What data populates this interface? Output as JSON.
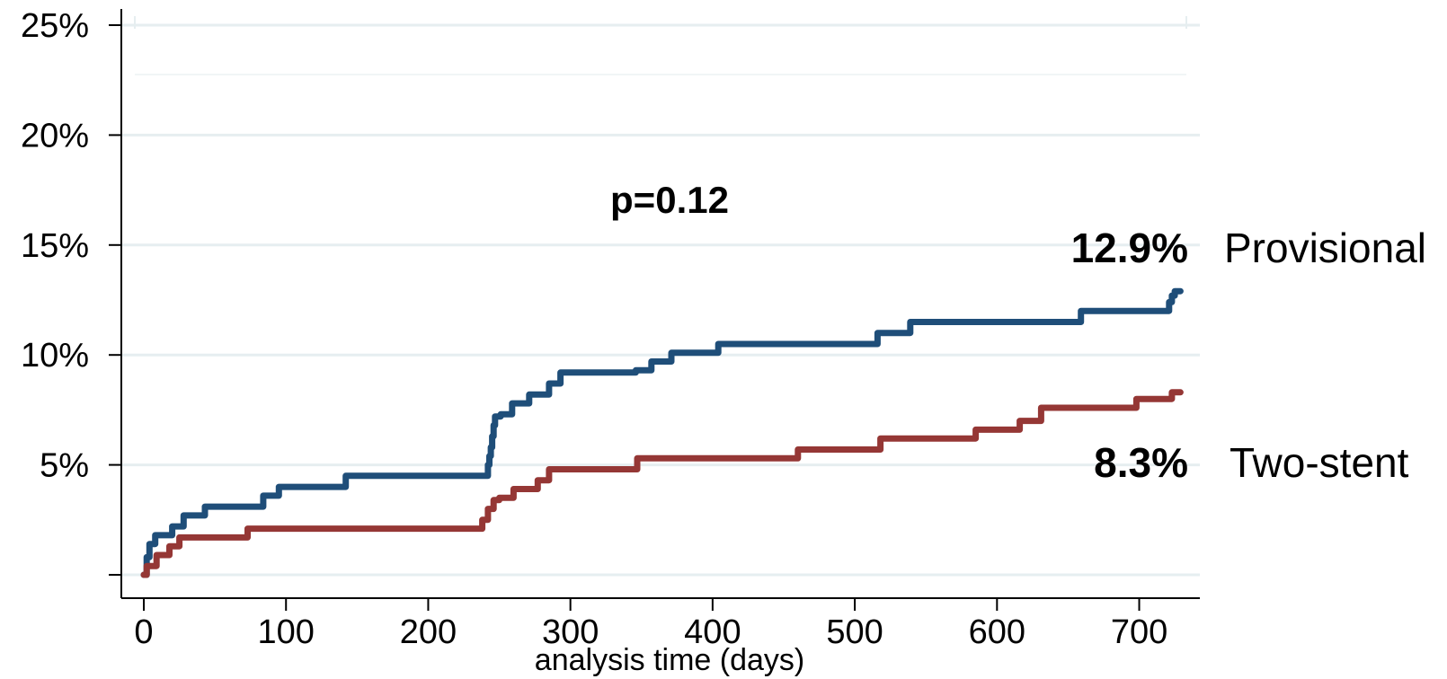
{
  "chart_data": {
    "type": "line",
    "xlabel": "analysis time (days)",
    "ylabel": "",
    "xlim": [
      0,
      730
    ],
    "ylim": [
      0,
      0.25
    ],
    "x_ticks": [
      "0",
      "100",
      "200",
      "300",
      "400",
      "500",
      "600",
      "700"
    ],
    "y_ticks": [
      "",
      "5%",
      "10%",
      "15%",
      "20%",
      "25%"
    ],
    "grid": true,
    "step": true,
    "annotation": "p=0.12",
    "series": [
      {
        "name": "Provisional",
        "end_value_label": "12.9%",
        "color": "#1f4e79",
        "x": [
          0,
          2,
          4,
          8,
          19,
          20,
          27,
          28,
          41,
          43,
          83,
          84,
          94,
          95,
          140,
          142,
          241,
          242,
          243,
          244,
          245,
          246,
          247,
          250,
          251,
          258,
          259,
          270,
          271,
          284,
          285,
          292,
          293,
          345,
          346,
          356,
          357,
          370,
          371,
          403,
          404,
          515,
          516,
          538,
          539,
          658,
          659,
          720,
          721,
          722,
          723,
          724,
          725,
          729
        ],
        "y": [
          0,
          0.008,
          0.014,
          0.018,
          0.018,
          0.022,
          0.022,
          0.027,
          0.027,
          0.031,
          0.031,
          0.036,
          0.036,
          0.04,
          0.04,
          0.045,
          0.045,
          0.05,
          0.054,
          0.058,
          0.063,
          0.068,
          0.072,
          0.072,
          0.073,
          0.073,
          0.078,
          0.078,
          0.082,
          0.082,
          0.087,
          0.087,
          0.092,
          0.092,
          0.093,
          0.093,
          0.097,
          0.097,
          0.101,
          0.101,
          0.105,
          0.105,
          0.11,
          0.11,
          0.115,
          0.115,
          0.12,
          0.12,
          0.124,
          0.124,
          0.127,
          0.127,
          0.129,
          0.129
        ]
      },
      {
        "name": "Two-stent",
        "end_value_label": "8.3%",
        "color": "#953735",
        "x": [
          0,
          2,
          8,
          9,
          17,
          18,
          24,
          25,
          72,
          73,
          237,
          238,
          241,
          242,
          245,
          246,
          249,
          250,
          259,
          260,
          276,
          277,
          284,
          285,
          346,
          347,
          459,
          460,
          517,
          518,
          584,
          585,
          615,
          616,
          630,
          631,
          697,
          698,
          722,
          723,
          729
        ],
        "y": [
          0,
          0.004,
          0.004,
          0.009,
          0.009,
          0.013,
          0.013,
          0.017,
          0.017,
          0.021,
          0.021,
          0.025,
          0.025,
          0.03,
          0.03,
          0.034,
          0.034,
          0.035,
          0.035,
          0.039,
          0.039,
          0.043,
          0.043,
          0.048,
          0.048,
          0.053,
          0.053,
          0.057,
          0.057,
          0.062,
          0.062,
          0.066,
          0.066,
          0.07,
          0.07,
          0.076,
          0.076,
          0.08,
          0.08,
          0.083,
          0.083
        ]
      }
    ]
  }
}
